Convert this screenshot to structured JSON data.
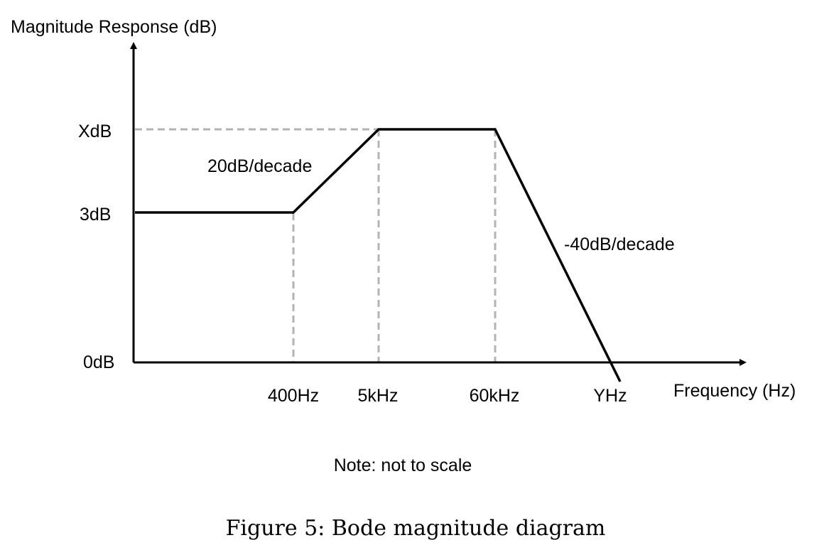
{
  "y_axis_label": "Magnitude Response (dB)",
  "x_axis_label": "Frequency (Hz)",
  "y_ticks": [
    "XdB",
    "3dB",
    "0dB"
  ],
  "x_ticks": [
    "400Hz",
    "5kHz",
    "60kHz",
    "YHz"
  ],
  "slope_labels": {
    "rising": "20dB/decade",
    "falling": "-40dB/decade"
  },
  "note": "Note: not to scale",
  "caption": "Figure 5: Bode magnitude diagram"
}
